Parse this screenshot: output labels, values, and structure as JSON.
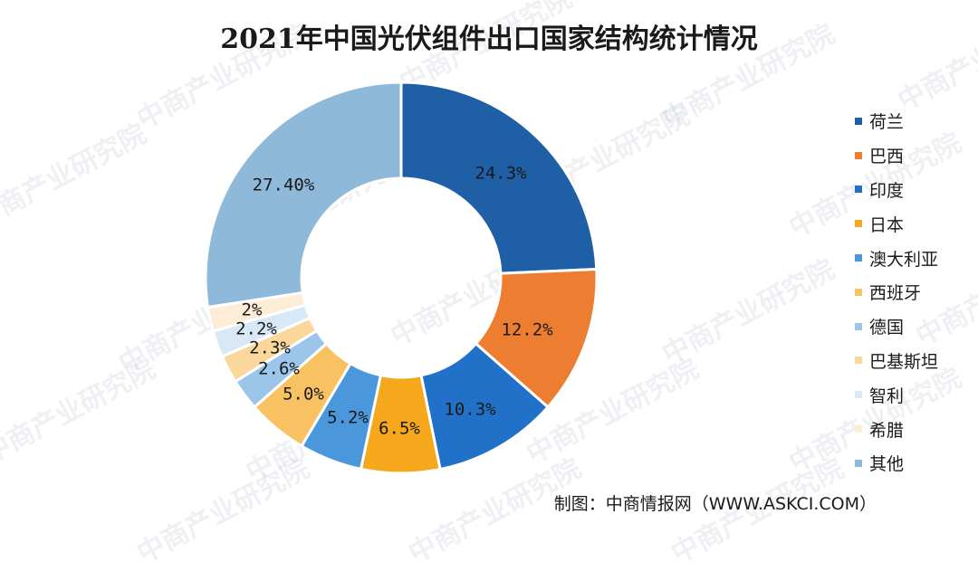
{
  "watermark": "中商产业研究院",
  "source": "制图：中商情报网（WWW.ASKCI.COM）",
  "chart_data": {
    "type": "pie",
    "donut": true,
    "title": "2021年中国光伏组件出口国家结构统计情况",
    "legend_position": "right",
    "slices": [
      {
        "name": "荷兰",
        "value": 24.3,
        "label": "24.3%",
        "color": "#1f5fa6"
      },
      {
        "name": "巴西",
        "value": 12.2,
        "label": "12.2%",
        "color": "#ed7d31"
      },
      {
        "name": "印度",
        "value": 10.3,
        "label": "10.3%",
        "color": "#2271c9"
      },
      {
        "name": "日本",
        "value": 6.5,
        "label": "6.5%",
        "color": "#f5a81c"
      },
      {
        "name": "澳大利亚",
        "value": 5.2,
        "label": "5.2%",
        "color": "#4a97dc"
      },
      {
        "name": "西班牙",
        "value": 5.0,
        "label": "5.0%",
        "color": "#f8c262"
      },
      {
        "name": "德国",
        "value": 2.6,
        "label": "2.6%",
        "color": "#9cc5ea"
      },
      {
        "name": "巴基斯坦",
        "value": 2.3,
        "label": "2.3%",
        "color": "#fad79b"
      },
      {
        "name": "智利",
        "value": 2.2,
        "label": "2.2%",
        "color": "#d8e8f6"
      },
      {
        "name": "希腊",
        "value": 2.0,
        "label": "2%",
        "color": "#fdecd6"
      },
      {
        "name": "其他",
        "value": 27.4,
        "label": "27.40%",
        "color": "#8fb9d9"
      }
    ]
  }
}
